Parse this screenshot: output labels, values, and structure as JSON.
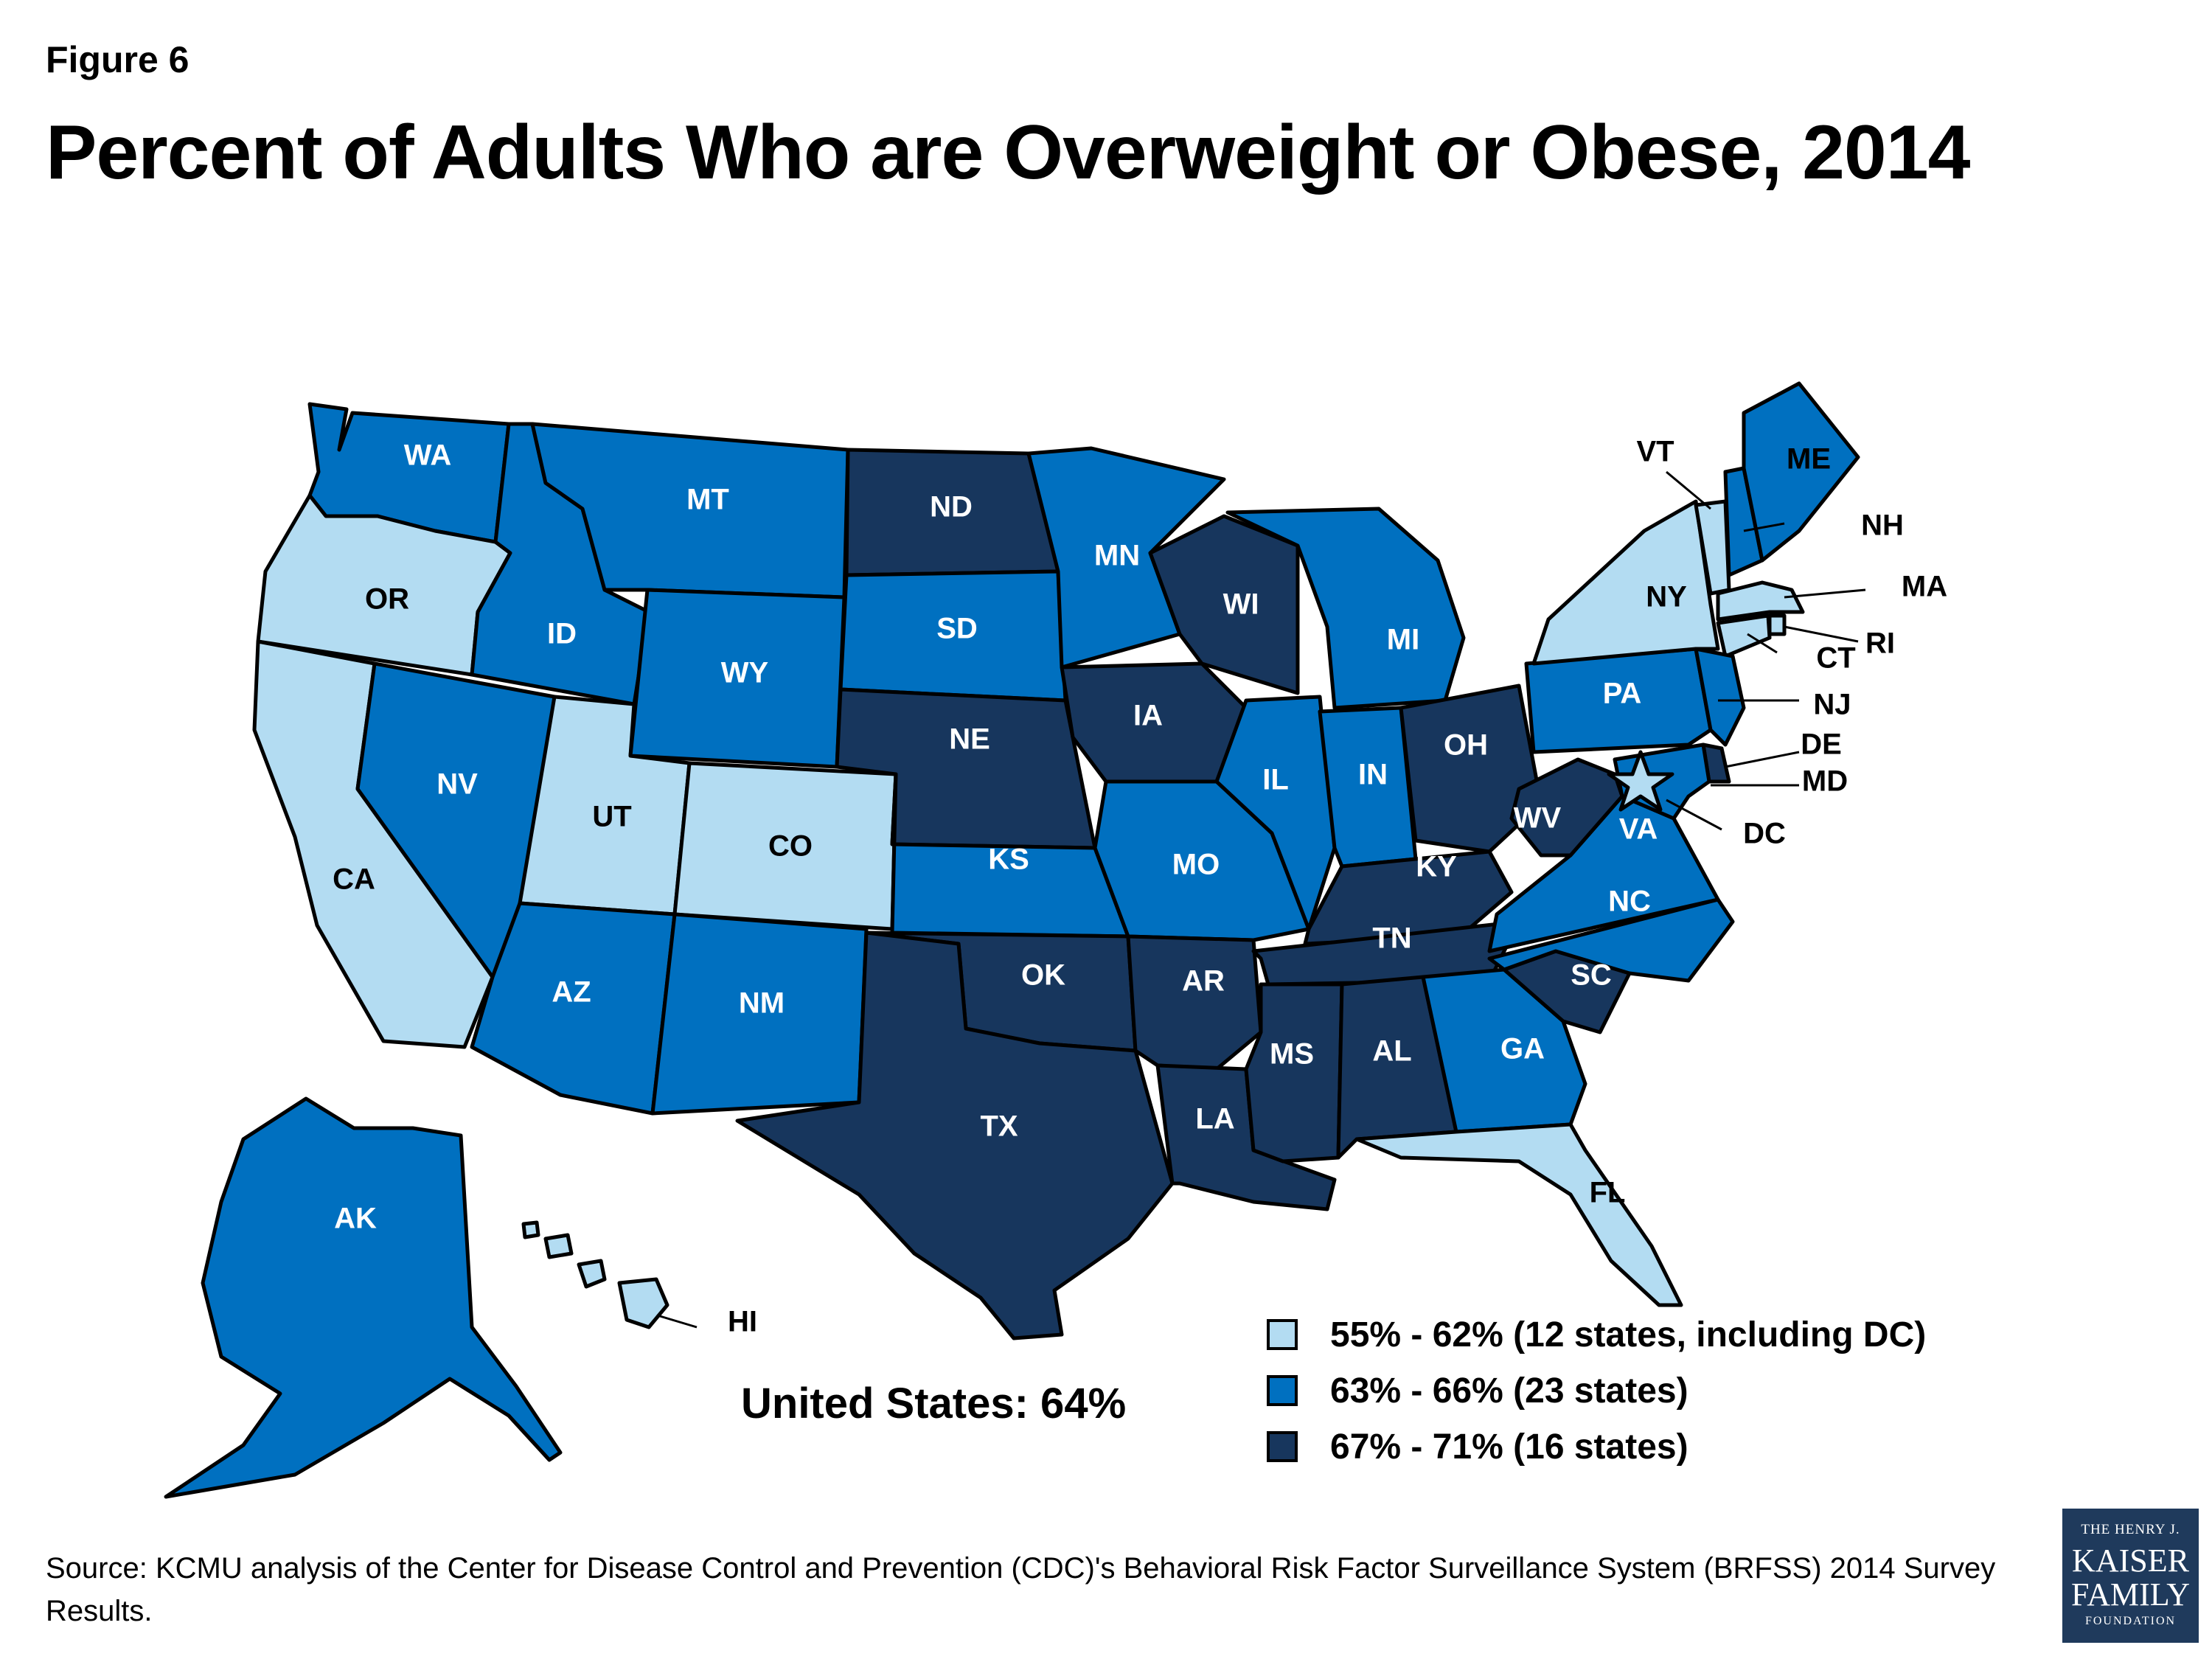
{
  "figure_label": "Figure 6",
  "title": "Percent of Adults Who are Overweight or Obese, 2014",
  "us_total": "United States: 64%",
  "colors": {
    "light": "#b3dcf2",
    "mid": "#0070c0",
    "dark": "#17365d",
    "border": "#000000"
  },
  "legend": [
    {
      "label": "55% - 62% (12 states, including DC)",
      "color": "#b3dcf2",
      "tier": "light"
    },
    {
      "label": "63% - 66% (23 states)",
      "color": "#0070c0",
      "tier": "mid"
    },
    {
      "label": "67% - 71% (16 states)",
      "color": "#17365d",
      "tier": "dark"
    }
  ],
  "states": {
    "WA": "mid",
    "OR": "light",
    "CA": "light",
    "ID": "mid",
    "NV": "mid",
    "UT": "light",
    "AZ": "mid",
    "MT": "mid",
    "WY": "mid",
    "CO": "light",
    "NM": "mid",
    "ND": "dark",
    "SD": "mid",
    "NE": "dark",
    "KS": "mid",
    "OK": "dark",
    "TX": "dark",
    "MN": "mid",
    "IA": "dark",
    "MO": "mid",
    "AR": "dark",
    "LA": "dark",
    "WI": "dark",
    "IL": "mid",
    "MI": "mid",
    "IN": "mid",
    "OH": "dark",
    "KY": "dark",
    "TN": "dark",
    "MS": "dark",
    "AL": "dark",
    "GA": "mid",
    "FL": "light",
    "SC": "dark",
    "NC": "mid",
    "VA": "mid",
    "WV": "dark",
    "PA": "mid",
    "NY": "light",
    "VT": "light",
    "NH": "mid",
    "ME": "mid",
    "MA": "light",
    "RI": "light",
    "CT": "light",
    "NJ": "mid",
    "DE": "dark",
    "MD": "mid",
    "DC": "light",
    "AK": "mid",
    "HI": "light"
  },
  "state_labels": {
    "WA": "WA",
    "OR": "OR",
    "CA": "CA",
    "ID": "ID",
    "NV": "NV",
    "UT": "UT",
    "AZ": "AZ",
    "MT": "MT",
    "WY": "WY",
    "CO": "CO",
    "NM": "NM",
    "ND": "ND",
    "SD": "SD",
    "NE": "NE",
    "KS": "KS",
    "OK": "OK",
    "TX": "TX",
    "MN": "MN",
    "IA": "IA",
    "MO": "MO",
    "AR": "AR",
    "LA": "LA",
    "WI": "WI",
    "IL": "IL",
    "MI": "MI",
    "IN": "IN",
    "OH": "OH",
    "KY": "KY",
    "TN": "TN",
    "MS": "MS",
    "AL": "AL",
    "GA": "GA",
    "FL": "FL",
    "SC": "SC",
    "NC": "NC",
    "VA": "VA",
    "WV": "WV",
    "PA": "PA",
    "NY": "NY",
    "VT": "VT",
    "NH": "NH",
    "ME": "ME",
    "MA": "MA",
    "RI": "RI",
    "CT": "CT",
    "NJ": "NJ",
    "DE": "DE",
    "MD": "MD",
    "DC": "DC",
    "AK": "AK",
    "HI": "HI"
  },
  "source": "Source: KCMU analysis of the Center for Disease Control and Prevention (CDC)'s Behavioral Risk Factor Surveillance System (BRFSS) 2014 Survey Results.",
  "logo": {
    "line1": "THE HENRY J.",
    "line2": "KAISER",
    "line3": "FAMILY",
    "line4": "FOUNDATION"
  }
}
